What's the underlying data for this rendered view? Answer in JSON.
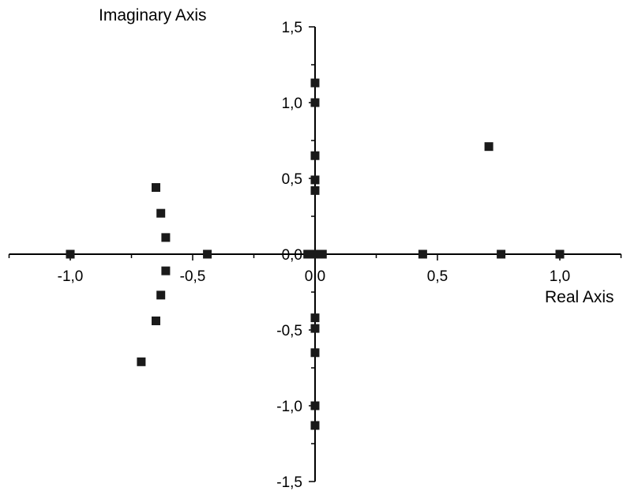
{
  "chart_data": {
    "type": "scatter",
    "xlabel": "Real Axis",
    "ylabel": "Imaginary Axis",
    "xlim": [
      -1.25,
      1.25
    ],
    "ylim": [
      -1.5,
      1.5
    ],
    "x_ticks": [
      {
        "value": -1.0,
        "label": "-1,0"
      },
      {
        "value": -0.5,
        "label": "-0,5"
      },
      {
        "value": 0.0,
        "label": "0,0"
      },
      {
        "value": 0.5,
        "label": "0,5"
      },
      {
        "value": 1.0,
        "label": "1,0"
      }
    ],
    "y_ticks": [
      {
        "value": 1.5,
        "label": "1,5"
      },
      {
        "value": 1.0,
        "label": "1,0"
      },
      {
        "value": 0.5,
        "label": "0,5"
      },
      {
        "value": 0.0,
        "label": "0,0"
      },
      {
        "value": -0.5,
        "label": "-0,5"
      },
      {
        "value": -1.0,
        "label": "-1,0"
      },
      {
        "value": -1.5,
        "label": "-1,5"
      }
    ],
    "grid": false,
    "marker_color": "#1a1a1a",
    "points": [
      {
        "x": -1.0,
        "y": 0.0
      },
      {
        "x": -0.44,
        "y": 0.0
      },
      {
        "x": -0.65,
        "y": 0.44
      },
      {
        "x": -0.63,
        "y": 0.27
      },
      {
        "x": -0.61,
        "y": 0.11
      },
      {
        "x": -0.61,
        "y": -0.11
      },
      {
        "x": -0.63,
        "y": -0.27
      },
      {
        "x": -0.65,
        "y": -0.44
      },
      {
        "x": -0.71,
        "y": -0.71
      },
      {
        "x": -0.03,
        "y": 0.0
      },
      {
        "x": 0.0,
        "y": 0.0
      },
      {
        "x": 0.03,
        "y": 0.0
      },
      {
        "x": 0.0,
        "y": 1.13
      },
      {
        "x": 0.0,
        "y": 1.0
      },
      {
        "x": 0.0,
        "y": 0.65
      },
      {
        "x": 0.0,
        "y": 0.49
      },
      {
        "x": 0.0,
        "y": 0.42
      },
      {
        "x": 0.0,
        "y": -0.42
      },
      {
        "x": 0.0,
        "y": -0.49
      },
      {
        "x": 0.0,
        "y": -0.65
      },
      {
        "x": 0.0,
        "y": -1.0
      },
      {
        "x": 0.0,
        "y": -1.13
      },
      {
        "x": 0.44,
        "y": 0.0
      },
      {
        "x": 0.71,
        "y": 0.71
      },
      {
        "x": 0.76,
        "y": 0.0
      },
      {
        "x": 1.0,
        "y": 0.0
      }
    ]
  }
}
